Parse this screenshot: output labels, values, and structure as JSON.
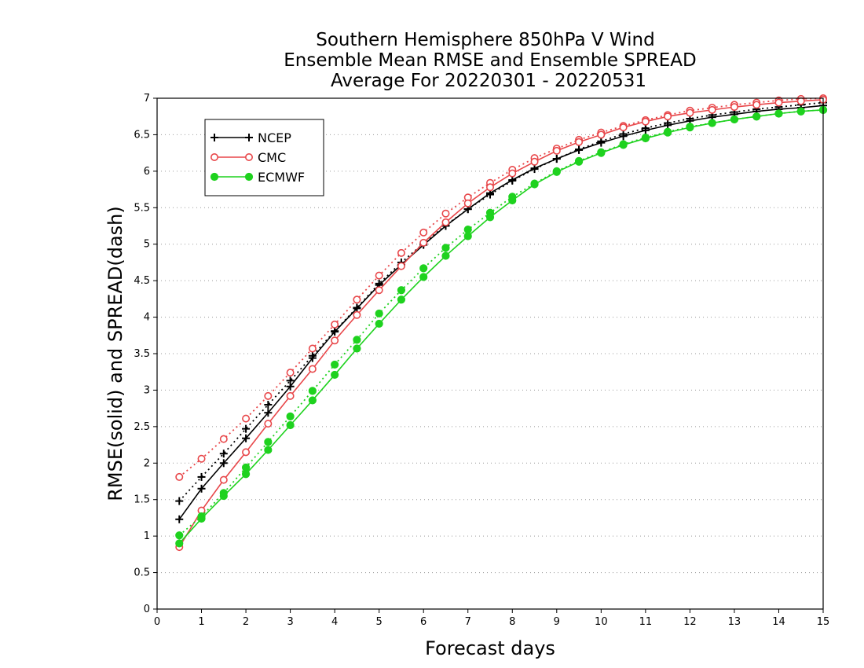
{
  "chart_data": {
    "type": "line",
    "title": [
      "Southern Hemisphere 850hPa V Wind",
      "Ensemble Mean RMSE and Ensemble SPREAD",
      "Average For 20220301 - 20220531"
    ],
    "xlabel": "Forecast days",
    "ylabel": "RMSE(solid) and SPREAD(dash)",
    "xlim": [
      0,
      15
    ],
    "ylim": [
      0,
      7
    ],
    "xticks": [
      "0",
      "1",
      "2",
      "3",
      "4",
      "5",
      "6",
      "7",
      "8",
      "9",
      "10",
      "11",
      "12",
      "13",
      "14",
      "15"
    ],
    "yticks": [
      "0",
      "0.5",
      "1",
      "1.5",
      "2",
      "2.5",
      "3",
      "3.5",
      "4",
      "4.5",
      "5",
      "5.5",
      "6",
      "6.5",
      "7"
    ],
    "grid": "horizontal dotted",
    "legend_position": "top-left",
    "x": [
      0.5,
      1,
      1.5,
      2,
      2.5,
      3,
      3.5,
      4,
      4.5,
      5,
      5.5,
      6,
      6.5,
      7,
      7.5,
      8,
      8.5,
      9,
      9.5,
      10,
      10.5,
      11,
      11.5,
      12,
      12.5,
      13,
      13.5,
      14,
      14.5,
      15
    ],
    "series": [
      {
        "name": "NCEP",
        "color": "#000000",
        "marker": "plus",
        "rmse": [
          1.23,
          1.65,
          2.0,
          2.34,
          2.69,
          3.05,
          3.44,
          3.8,
          4.12,
          4.44,
          4.72,
          4.99,
          5.25,
          5.48,
          5.7,
          5.88,
          6.04,
          6.17,
          6.29,
          6.39,
          6.48,
          6.56,
          6.63,
          6.69,
          6.74,
          6.78,
          6.82,
          6.85,
          6.87,
          6.9
        ],
        "spread": [
          1.48,
          1.81,
          2.13,
          2.47,
          2.8,
          3.13,
          3.47,
          3.81,
          4.13,
          4.46,
          4.75,
          5.01,
          5.26,
          5.48,
          5.68,
          5.87,
          6.03,
          6.17,
          6.3,
          6.41,
          6.51,
          6.59,
          6.66,
          6.72,
          6.77,
          6.81,
          6.85,
          6.88,
          6.91,
          6.94
        ]
      },
      {
        "name": "CMC",
        "color": "#e8474a",
        "marker": "open-circle",
        "rmse": [
          0.85,
          1.35,
          1.77,
          2.15,
          2.54,
          2.92,
          3.29,
          3.68,
          4.03,
          4.37,
          4.7,
          5.02,
          5.3,
          5.56,
          5.78,
          5.97,
          6.13,
          6.28,
          6.4,
          6.5,
          6.6,
          6.68,
          6.75,
          6.8,
          6.84,
          6.88,
          6.91,
          6.94,
          6.96,
          6.98
        ],
        "spread": [
          1.81,
          2.06,
          2.33,
          2.61,
          2.92,
          3.24,
          3.57,
          3.9,
          4.24,
          4.57,
          4.88,
          5.16,
          5.42,
          5.64,
          5.84,
          6.02,
          6.18,
          6.31,
          6.43,
          6.53,
          6.62,
          6.7,
          6.77,
          6.83,
          6.87,
          6.91,
          6.94,
          6.97,
          6.99,
          7.0
        ]
      },
      {
        "name": "ECMWF",
        "color": "#1ed21e",
        "marker": "filled-circle",
        "rmse": [
          0.9,
          1.24,
          1.55,
          1.85,
          2.18,
          2.52,
          2.86,
          3.21,
          3.57,
          3.91,
          4.24,
          4.55,
          4.84,
          5.11,
          5.37,
          5.6,
          5.82,
          5.99,
          6.13,
          6.25,
          6.36,
          6.45,
          6.53,
          6.6,
          6.66,
          6.71,
          6.75,
          6.79,
          6.82,
          6.84
        ],
        "spread": [
          1.01,
          1.27,
          1.59,
          1.94,
          2.29,
          2.64,
          2.99,
          3.35,
          3.69,
          4.05,
          4.37,
          4.67,
          4.95,
          5.2,
          5.43,
          5.65,
          5.83,
          6.0,
          6.14,
          6.26,
          6.37,
          6.46,
          6.54,
          6.61,
          6.66,
          6.71,
          6.75,
          6.79,
          6.82,
          6.84
        ]
      }
    ]
  }
}
